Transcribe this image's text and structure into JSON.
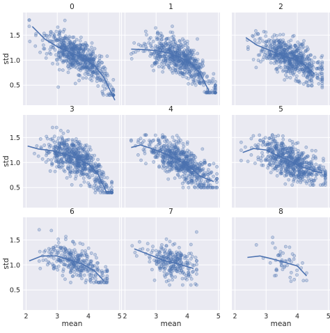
{
  "chart_data": {
    "type": "scatter",
    "layout": "facet-grid 3x3",
    "xlabel": "mean",
    "ylabel": "std",
    "xlim": [
      1.9,
      5.05
    ],
    "ylim": [
      0.1,
      1.95
    ],
    "x_ticks": [
      2,
      3,
      4,
      5
    ],
    "y_ticks": [
      0.5,
      1.0,
      1.5
    ],
    "grid": true,
    "marker_color": "#4c72b0",
    "panel_background": "#eaeaf2",
    "panels": [
      {
        "title": "0",
        "points": 600,
        "x_range": [
          2.1,
          4.8
        ],
        "y_range": [
          0.3,
          1.8
        ],
        "trend": [
          [
            2.2,
            1.67
          ],
          [
            2.6,
            1.42
          ],
          [
            3.0,
            1.27
          ],
          [
            3.4,
            1.16
          ],
          [
            3.8,
            1.05
          ],
          [
            4.2,
            0.89
          ],
          [
            4.5,
            0.65
          ],
          [
            4.85,
            0.2
          ]
        ]
      },
      {
        "title": "1",
        "points": 600,
        "x_range": [
          2.1,
          4.9
        ],
        "y_range": [
          0.35,
          1.75
        ],
        "trend": [
          [
            2.2,
            1.22
          ],
          [
            2.6,
            1.21
          ],
          [
            3.0,
            1.19
          ],
          [
            3.4,
            1.14
          ],
          [
            3.8,
            1.05
          ],
          [
            4.1,
            0.95
          ],
          [
            4.4,
            0.75
          ],
          [
            4.7,
            0.38
          ]
        ]
      },
      {
        "title": "2",
        "points": 600,
        "x_range": [
          2.3,
          4.8
        ],
        "y_range": [
          0.45,
          1.8
        ],
        "trend": [
          [
            2.35,
            1.45
          ],
          [
            2.7,
            1.3
          ],
          [
            3.1,
            1.2
          ],
          [
            3.5,
            1.1
          ],
          [
            3.9,
            1.02
          ],
          [
            4.2,
            0.92
          ],
          [
            4.55,
            0.73
          ]
        ]
      },
      {
        "title": "3",
        "points": 600,
        "x_range": [
          2.05,
          4.75
        ],
        "y_range": [
          0.4,
          1.7
        ],
        "trend": [
          [
            2.05,
            1.33
          ],
          [
            2.4,
            1.27
          ],
          [
            2.8,
            1.24
          ],
          [
            3.2,
            1.18
          ],
          [
            3.6,
            1.09
          ],
          [
            4.0,
            0.97
          ],
          [
            4.3,
            0.78
          ],
          [
            4.6,
            0.38
          ]
        ]
      },
      {
        "title": "4",
        "points": 600,
        "x_range": [
          2.2,
          4.95
        ],
        "y_range": [
          0.5,
          1.55
        ],
        "trend": [
          [
            2.2,
            1.3
          ],
          [
            2.5,
            1.35
          ],
          [
            2.9,
            1.27
          ],
          [
            3.3,
            1.17
          ],
          [
            3.7,
            1.05
          ],
          [
            4.1,
            0.91
          ],
          [
            4.4,
            0.73
          ],
          [
            4.85,
            0.62
          ]
        ]
      },
      {
        "title": "5",
        "points": 600,
        "x_range": [
          2.2,
          4.9
        ],
        "y_range": [
          0.55,
          1.55
        ],
        "trend": [
          [
            2.25,
            1.2
          ],
          [
            2.6,
            1.28
          ],
          [
            3.0,
            1.25
          ],
          [
            3.4,
            1.13
          ],
          [
            3.8,
            1.02
          ],
          [
            4.2,
            0.9
          ],
          [
            4.6,
            0.82
          ],
          [
            4.8,
            0.79
          ]
        ]
      },
      {
        "title": "6",
        "points": 300,
        "x_range": [
          2.1,
          4.6
        ],
        "y_range": [
          0.65,
          1.75
        ],
        "trend": [
          [
            2.1,
            1.08
          ],
          [
            2.5,
            1.18
          ],
          [
            3.0,
            1.18
          ],
          [
            3.4,
            1.1
          ],
          [
            3.8,
            1.02
          ],
          [
            4.2,
            0.88
          ],
          [
            4.5,
            0.68
          ]
        ]
      },
      {
        "title": "7",
        "points": 250,
        "x_range": [
          2.2,
          4.3
        ],
        "y_range": [
          0.6,
          1.8
        ],
        "trend": [
          [
            2.3,
            1.32
          ],
          [
            2.8,
            1.2
          ],
          [
            3.2,
            1.1
          ],
          [
            3.7,
            1.02
          ],
          [
            4.2,
            0.93
          ]
        ]
      },
      {
        "title": "8",
        "points": 50,
        "x_range": [
          2.4,
          4.3
        ],
        "y_range": [
          0.6,
          1.55
        ],
        "trend": [
          [
            2.4,
            1.15
          ],
          [
            2.8,
            1.18
          ],
          [
            3.2,
            1.12
          ],
          [
            3.6,
            1.05
          ],
          [
            4.0,
            0.98
          ],
          [
            4.3,
            0.78
          ]
        ]
      }
    ]
  }
}
